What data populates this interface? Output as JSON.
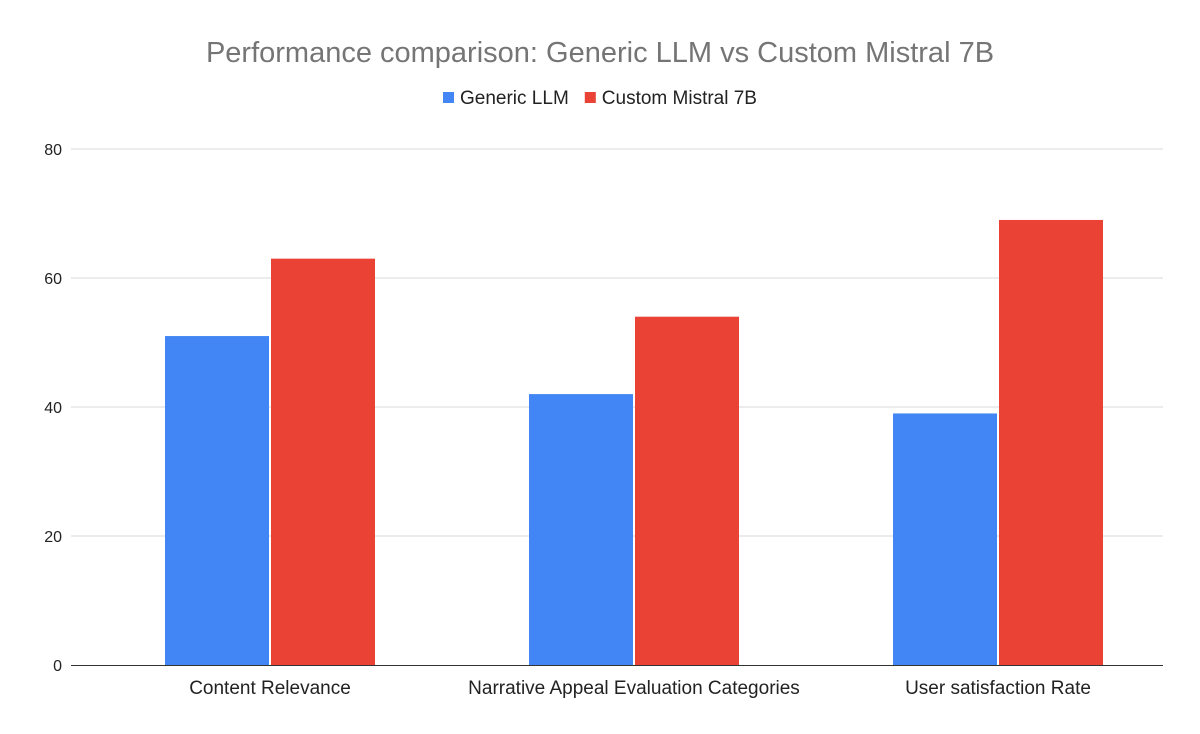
{
  "chart_data": {
    "type": "bar",
    "title": "Performance comparison: Generic LLM vs Custom Mistral 7B",
    "categories": [
      "Content Relevance",
      "Narrative Appeal Evaluation Categories",
      "User satisfaction Rate"
    ],
    "series": [
      {
        "name": "Generic LLM",
        "color": "#4285f4",
        "values": [
          51,
          42,
          39
        ]
      },
      {
        "name": "Custom Mistral 7B",
        "color": "#ea4335",
        "values": [
          63,
          54,
          69
        ]
      }
    ],
    "ylim": [
      0,
      80
    ],
    "yticks": [
      0,
      20,
      40,
      60,
      80
    ],
    "grid": true,
    "legend_position": "top-center"
  }
}
